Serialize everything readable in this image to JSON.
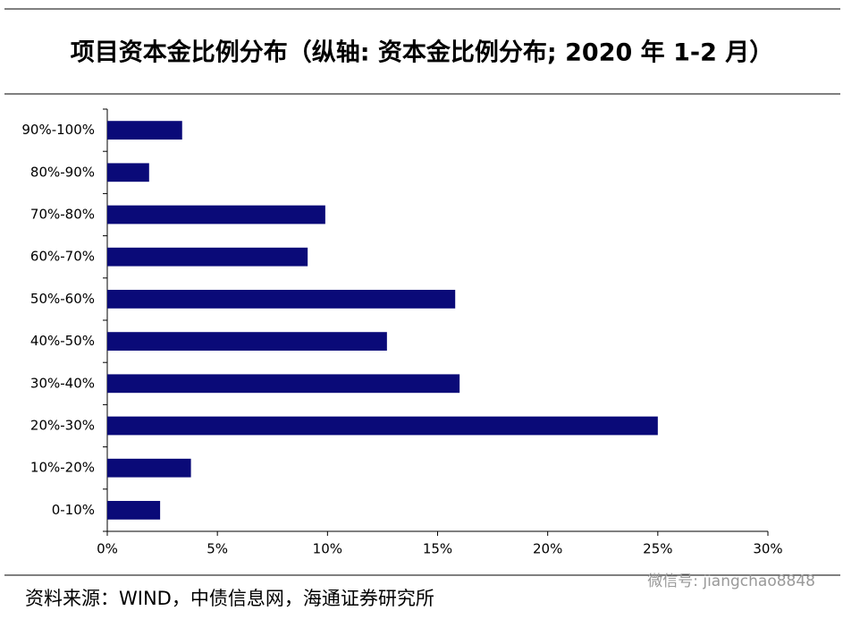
{
  "chart_data": {
    "type": "hbar",
    "title": "项目资本金比例分布（纵轴: 资本金比例分布; 2020 年 1-2 月）",
    "categories": [
      "0-10%",
      "10%-20%",
      "20%-30%",
      "30%-40%",
      "40%-50%",
      "50%-60%",
      "60%-70%",
      "70%-80%",
      "80%-90%",
      "90%-100%"
    ],
    "values": [
      2.4,
      3.8,
      25.0,
      16.0,
      12.7,
      15.8,
      9.1,
      9.9,
      1.9,
      3.4
    ],
    "color": "#0a0a78",
    "xlim": [
      0,
      30
    ],
    "xticks": [
      {
        "value": 0,
        "label": "0%"
      },
      {
        "value": 5,
        "label": "5%"
      },
      {
        "value": 10,
        "label": "10%"
      },
      {
        "value": 15,
        "label": "15%"
      },
      {
        "value": 20,
        "label": "20%"
      },
      {
        "value": 25,
        "label": "25%"
      },
      {
        "value": 30,
        "label": "30%"
      }
    ],
    "grid": false,
    "source": "资料来源：WIND，中债信息网，海通证券研究所",
    "watermark": "微信号: jiangchao8848"
  }
}
